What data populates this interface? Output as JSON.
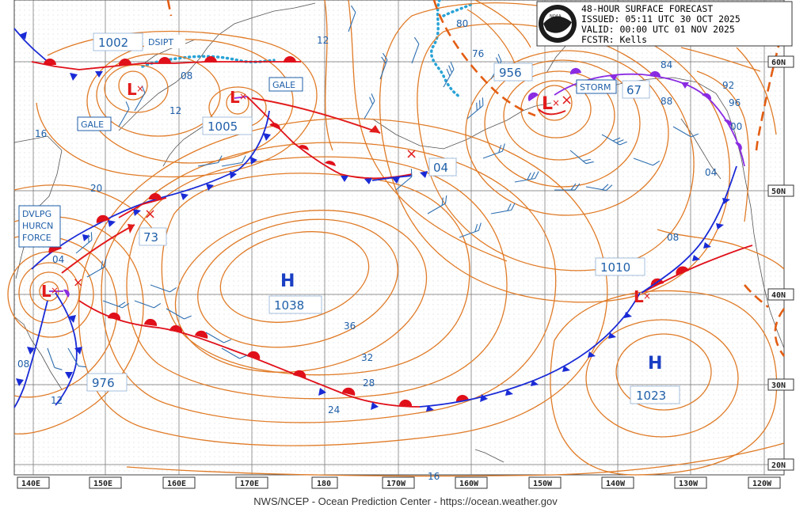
{
  "header": {
    "product": "48-HOUR SURFACE FORECAST",
    "issued": "ISSUED: 05:11 UTC 30 OCT 2025",
    "valid": "VALID:  00:00 UTC 01 NOV 2025",
    "forecaster": "FCSTR:  Kells",
    "logo_text": "NOAA"
  },
  "footer": {
    "credit": "NWS/NCEP - Ocean Prediction Center - https://ocean.weather.gov"
  },
  "longitudes": [
    "140E",
    "150E",
    "160E",
    "170E",
    "180",
    "170W",
    "160W",
    "150W",
    "140W",
    "130W",
    "120W"
  ],
  "latitudes": [
    "60N",
    "50N",
    "40N",
    "30N",
    "20N"
  ],
  "pressure_centers": [
    {
      "type": "H",
      "value": "1038"
    },
    {
      "type": "H",
      "value": "1023"
    },
    {
      "type": "L",
      "value": "1002"
    },
    {
      "type": "L",
      "value": "1005"
    },
    {
      "type": "L",
      "value": "956"
    },
    {
      "type": "L",
      "value": "976"
    },
    {
      "type": "L",
      "value": "1010"
    },
    {
      "type": "L",
      "value": "73"
    },
    {
      "type": "L",
      "value": "67"
    },
    {
      "type": "L",
      "value": "04"
    }
  ],
  "warnings": [
    "DSIPT",
    "GALE",
    "GALE",
    "STORM",
    "DVLPG HURCN FORCE"
  ],
  "isobar_labels": [
    "12",
    "80",
    "76",
    "84",
    "92",
    "88",
    "96",
    "00",
    "04",
    "08",
    "08",
    "12",
    "16",
    "20",
    "04",
    "36",
    "32",
    "28",
    "24",
    "08",
    "12",
    "16"
  ],
  "colors": {
    "isobar": "#e07b27",
    "cold_front": "#1a2bd6",
    "warm_front": "#e0101a",
    "occluded_front": "#8a2be2",
    "label": "#1f5fa8",
    "track": "#e21b1b",
    "grid": "#6f6f6f"
  }
}
